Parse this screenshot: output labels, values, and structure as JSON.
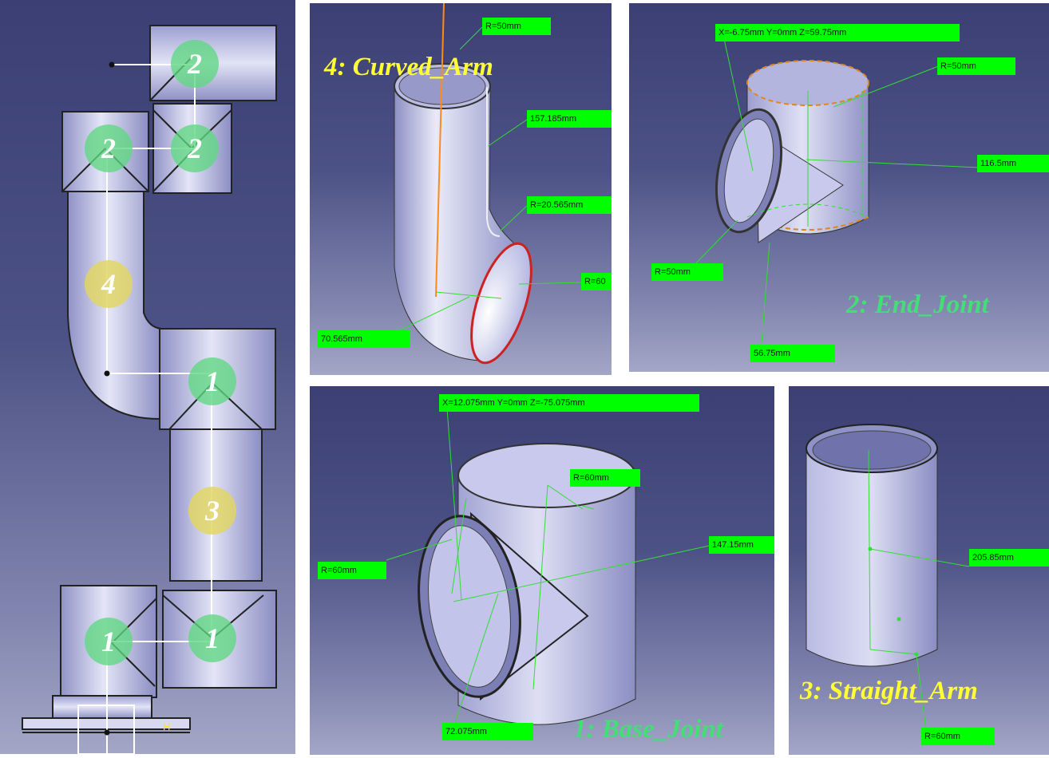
{
  "colors": {
    "accent_green": "#00ff00",
    "title_yellow": "#ffff33",
    "title_green": "#44dd77",
    "badge_green": "#5fd782",
    "badge_yellow": "#e2d660"
  },
  "assembly": {
    "badges": [
      "2",
      "2",
      "2",
      "4",
      "1",
      "3",
      "1",
      "1"
    ],
    "axis_marker": "H"
  },
  "curved_arm": {
    "title": "4: Curved_Arm",
    "dims": [
      "R=50mm",
      "157.185mm",
      "R=20.565mm",
      "R=60",
      "70.565mm"
    ]
  },
  "end_joint": {
    "title": "2: End_Joint",
    "coord": "X=-6.75mm  Y=0mm  Z=59.75mm",
    "dims": [
      "R=50mm",
      "116.5mm",
      "R=50mm",
      "56.75mm"
    ]
  },
  "base_joint": {
    "title": "1: Base_Joint",
    "coord": "X=12.075mm  Y=0mm  Z=-75.075mm",
    "dims": [
      "R=60mm",
      "147.15mm",
      "R=60mm",
      "72.075mm"
    ]
  },
  "straight_arm": {
    "title": "3: Straight_Arm",
    "dims": [
      "205.85mm",
      "R=60mm"
    ]
  }
}
